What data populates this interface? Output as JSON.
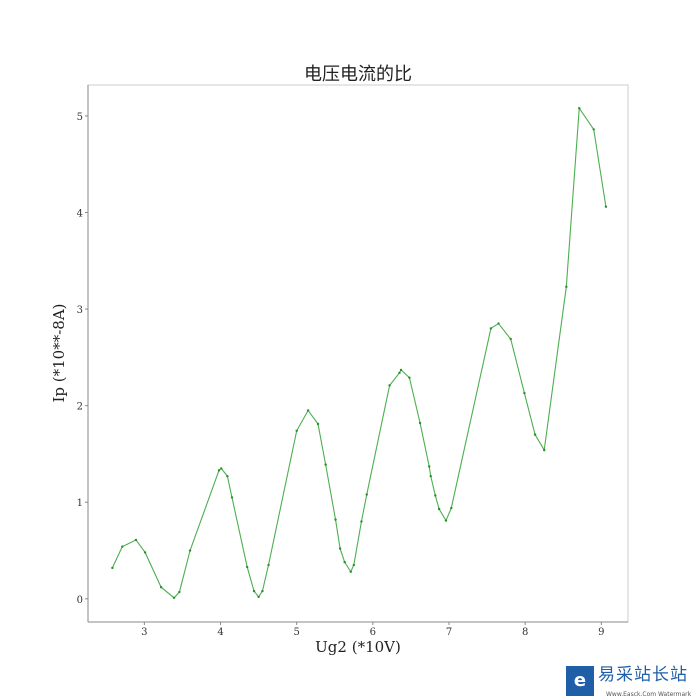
{
  "chart_data": {
    "type": "line",
    "title": "电压电流的比",
    "xlabel": "Ug2 (*10V)",
    "ylabel": "Ip (*10**-8A)",
    "xlim": [
      2.26,
      9.35
    ],
    "ylim": [
      -0.24,
      5.32
    ],
    "xticks": [
      3,
      4,
      5,
      6,
      7,
      8,
      9
    ],
    "yticks": [
      0,
      1,
      2,
      3,
      4,
      5
    ],
    "grid": false,
    "color": "#4caf50",
    "marker": "point",
    "x": [
      2.58,
      2.71,
      2.89,
      3.01,
      3.22,
      3.39,
      3.46,
      3.6,
      3.98,
      4.01,
      4.09,
      4.15,
      4.35,
      4.44,
      4.5,
      4.55,
      4.63,
      5.0,
      5.15,
      5.28,
      5.38,
      5.51,
      5.57,
      5.63,
      5.71,
      5.75,
      5.85,
      5.92,
      6.22,
      6.35,
      6.37,
      6.48,
      6.62,
      6.74,
      6.76,
      6.82,
      6.87,
      6.96,
      7.03,
      7.55,
      7.65,
      7.81,
      7.99,
      8.13,
      8.25,
      8.54,
      8.71,
      8.9,
      9.06
    ],
    "y": [
      0.32,
      0.54,
      0.61,
      0.48,
      0.12,
      0.01,
      0.07,
      0.5,
      1.33,
      1.35,
      1.27,
      1.05,
      0.33,
      0.08,
      0.02,
      0.08,
      0.35,
      1.74,
      1.95,
      1.81,
      1.39,
      0.82,
      0.52,
      0.38,
      0.28,
      0.35,
      0.8,
      1.08,
      2.21,
      2.34,
      2.37,
      2.29,
      1.82,
      1.37,
      1.27,
      1.07,
      0.93,
      0.81,
      0.94,
      2.8,
      2.85,
      2.69,
      2.13,
      1.7,
      1.54,
      3.23,
      5.08,
      4.86,
      4.06
    ]
  },
  "watermark": {
    "logo_text": "易采站长站",
    "sub_text": "Www.Easck.Com Watermark"
  }
}
